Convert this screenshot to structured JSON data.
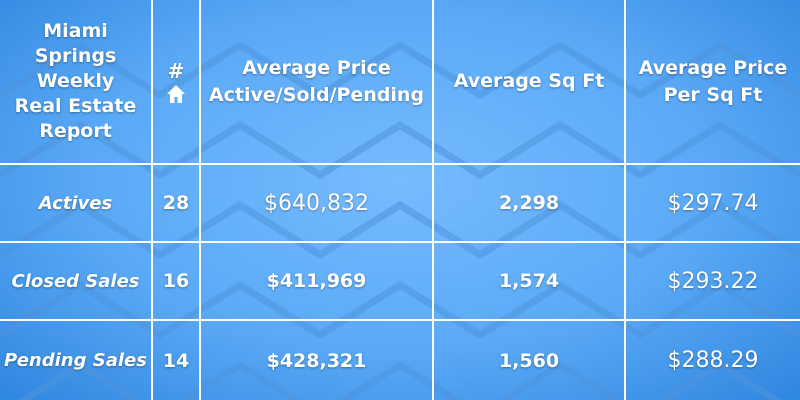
{
  "header": {
    "title_lines": [
      "Miami",
      "Springs",
      "Weekly",
      "Real Estate",
      "Report"
    ],
    "count_symbol": "#",
    "count_icon": "house-icon",
    "avg_price_lines": [
      "Average Price",
      "Active/Sold/Pending"
    ],
    "avg_sqft": "Average Sq Ft",
    "avg_price_sqft_lines": [
      "Average Price",
      "Per Sq Ft"
    ]
  },
  "rows": [
    {
      "label": "Actives",
      "count": "28",
      "avg_price": "$640,832",
      "avg_sqft": "2,298",
      "price_per_sqft": "$297.74"
    },
    {
      "label": "Closed Sales",
      "count": "16",
      "avg_price": "$411,969",
      "avg_sqft": "1,574",
      "price_per_sqft": "$293.22"
    },
    {
      "label": "Pending Sales",
      "count": "14",
      "avg_price": "$428,321",
      "avg_sqft": "1,560",
      "price_per_sqft": "$288.29"
    }
  ],
  "colors": {
    "background": "#5aa9f6",
    "grid_lines": "#ffffff",
    "text": "#ffffff"
  }
}
